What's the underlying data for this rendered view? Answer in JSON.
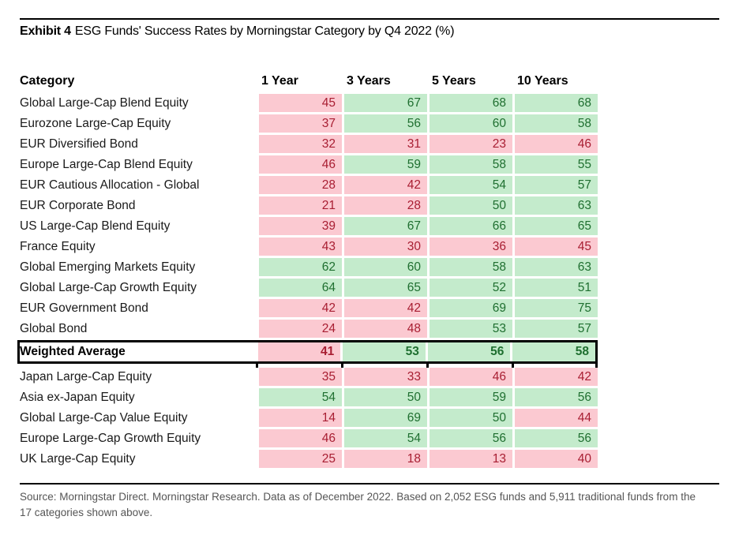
{
  "title_prefix": "Exhibit 4",
  "title_rest": "ESG Funds' Success Rates by Morningstar Category by Q4 2022 (%)",
  "source_text": "Source: Morningstar Direct. Morningstar Research. Data as of December 2022. Based on 2,052 ESG funds and 5,911 traditional funds from the 17 categories shown above.",
  "palette": {
    "green_bg": "#c4ebcc",
    "green_text": "#1f6f30",
    "pink_bg": "#fbc9d1",
    "pink_text": "#a81e32",
    "threshold": 50
  },
  "chart_data": {
    "type": "table",
    "title": "Exhibit 4 ESG Funds' Success Rates by Morningstar Category by Q4 2022 (%)",
    "columns": [
      "Category",
      "1 Year",
      "3 Years",
      "5 Years",
      "10 Years"
    ],
    "rows_above_average": [
      {
        "label": "Global Large-Cap Blend Equity",
        "values": [
          45,
          67,
          68,
          68
        ]
      },
      {
        "label": "Eurozone Large-Cap Equity",
        "values": [
          37,
          56,
          60,
          58
        ]
      },
      {
        "label": "EUR Diversified Bond",
        "values": [
          32,
          31,
          23,
          46
        ]
      },
      {
        "label": "Europe Large-Cap Blend Equity",
        "values": [
          46,
          59,
          58,
          55
        ]
      },
      {
        "label": "EUR Cautious Allocation - Global",
        "values": [
          28,
          42,
          54,
          57
        ]
      },
      {
        "label": "EUR Corporate Bond",
        "values": [
          21,
          28,
          50,
          63
        ]
      },
      {
        "label": "US Large-Cap Blend Equity",
        "values": [
          39,
          67,
          66,
          65
        ]
      },
      {
        "label": "France Equity",
        "values": [
          43,
          30,
          36,
          45
        ]
      },
      {
        "label": "Global Emerging Markets Equity",
        "values": [
          62,
          60,
          58,
          63
        ]
      },
      {
        "label": "Global Large-Cap Growth Equity",
        "values": [
          64,
          65,
          52,
          51
        ]
      },
      {
        "label": "EUR Government Bond",
        "values": [
          42,
          42,
          69,
          75
        ]
      },
      {
        "label": "Global Bond",
        "values": [
          24,
          48,
          53,
          57
        ]
      }
    ],
    "weighted_average": {
      "label": "Weighted Average",
      "values": [
        41,
        53,
        56,
        58
      ]
    },
    "rows_below_average": [
      {
        "label": "Japan Large-Cap Equity",
        "values": [
          35,
          33,
          46,
          42
        ]
      },
      {
        "label": "Asia ex-Japan Equity",
        "values": [
          54,
          50,
          59,
          56
        ]
      },
      {
        "label": "Global Large-Cap Value Equity",
        "values": [
          14,
          69,
          50,
          44
        ]
      },
      {
        "label": "Europe Large-Cap Growth Equity",
        "values": [
          46,
          54,
          56,
          56
        ]
      },
      {
        "label": "UK Large-Cap Equity",
        "values": [
          25,
          18,
          13,
          40
        ]
      }
    ],
    "color_rule": "value >= 50 shaded green (success), value < 50 shaded pink (shortfall)"
  }
}
